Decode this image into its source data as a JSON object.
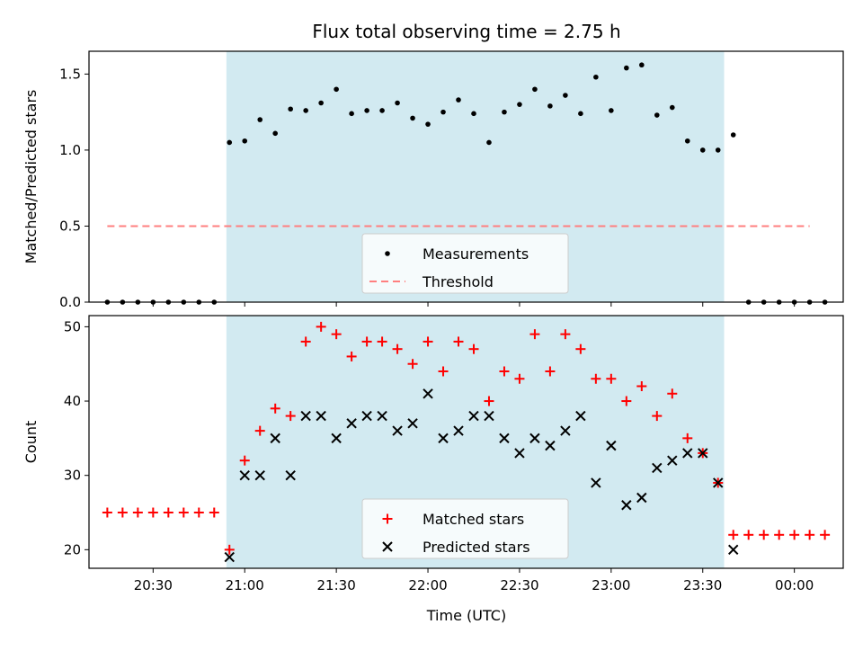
{
  "chart_data": {
    "title": "Flux total observing time = 2.75 h",
    "xlabel": "Time (UTC)",
    "x_ticks": [
      "20:30",
      "21:00",
      "21:30",
      "22:00",
      "22:30",
      "23:00",
      "23:30",
      "00:00"
    ],
    "x_tick_minutes": [
      1230,
      1260,
      1290,
      1320,
      1350,
      1380,
      1410,
      1440
    ],
    "xlim": [
      "20:09",
      "00:16"
    ],
    "highlight_span": [
      "20:54",
      "23:37"
    ],
    "colors": {
      "highlight": "#add8e6",
      "measurements": "#000000",
      "threshold": "#ff7f7f",
      "matched": "#ff0000",
      "predicted": "#000000"
    },
    "top": {
      "type": "scatter",
      "ylabel": "Matched/Predicted stars",
      "ylim": [
        0,
        1.65
      ],
      "y_ticks": [
        0.0,
        0.5,
        1.0,
        1.5
      ],
      "y_tick_labels": [
        "0.0",
        "0.5",
        "1.0",
        "1.5"
      ],
      "legend": [
        "Measurements",
        "Threshold"
      ],
      "legend_placement": "lower center",
      "threshold": {
        "y": 0.5,
        "x_range": [
          "20:15",
          "00:05"
        ]
      },
      "measurements": [
        [
          "20:15",
          0
        ],
        [
          "20:20",
          0
        ],
        [
          "20:25",
          0
        ],
        [
          "20:30",
          0
        ],
        [
          "20:35",
          0
        ],
        [
          "20:40",
          0
        ],
        [
          "20:45",
          0
        ],
        [
          "20:50",
          0
        ],
        [
          "20:55",
          1.05
        ],
        [
          "21:00",
          1.06
        ],
        [
          "21:05",
          1.2
        ],
        [
          "21:10",
          1.11
        ],
        [
          "21:15",
          1.27
        ],
        [
          "21:20",
          1.26
        ],
        [
          "21:25",
          1.31
        ],
        [
          "21:30",
          1.4
        ],
        [
          "21:35",
          1.24
        ],
        [
          "21:40",
          1.26
        ],
        [
          "21:45",
          1.26
        ],
        [
          "21:50",
          1.31
        ],
        [
          "21:55",
          1.21
        ],
        [
          "22:00",
          1.17
        ],
        [
          "22:05",
          1.25
        ],
        [
          "22:10",
          1.33
        ],
        [
          "22:15",
          1.24
        ],
        [
          "22:20",
          1.05
        ],
        [
          "22:25",
          1.25
        ],
        [
          "22:30",
          1.3
        ],
        [
          "22:35",
          1.4
        ],
        [
          "22:40",
          1.29
        ],
        [
          "22:45",
          1.36
        ],
        [
          "22:50",
          1.24
        ],
        [
          "22:55",
          1.48
        ],
        [
          "23:00",
          1.26
        ],
        [
          "23:05",
          1.54
        ],
        [
          "23:10",
          1.56
        ],
        [
          "23:15",
          1.23
        ],
        [
          "23:20",
          1.28
        ],
        [
          "23:25",
          1.06
        ],
        [
          "23:30",
          1.0
        ],
        [
          "23:35",
          1.0
        ],
        [
          "23:40",
          1.1
        ],
        [
          "23:45",
          0
        ],
        [
          "23:50",
          0
        ],
        [
          "23:55",
          0
        ],
        [
          "00:00",
          0
        ],
        [
          "00:05",
          0
        ],
        [
          "00:10",
          0
        ]
      ]
    },
    "bottom": {
      "type": "scatter",
      "ylabel": "Count",
      "ylim": [
        17.5,
        51.5
      ],
      "y_ticks": [
        20,
        30,
        40,
        50
      ],
      "y_tick_labels": [
        "20",
        "30",
        "40",
        "50"
      ],
      "legend": [
        "Matched stars",
        "Predicted stars"
      ],
      "legend_placement": "lower center",
      "matched_stars": [
        [
          "20:15",
          25
        ],
        [
          "20:20",
          25
        ],
        [
          "20:25",
          25
        ],
        [
          "20:30",
          25
        ],
        [
          "20:35",
          25
        ],
        [
          "20:40",
          25
        ],
        [
          "20:45",
          25
        ],
        [
          "20:50",
          25
        ],
        [
          "20:55",
          20
        ],
        [
          "21:00",
          32
        ],
        [
          "21:05",
          36
        ],
        [
          "21:10",
          39
        ],
        [
          "21:15",
          38
        ],
        [
          "21:20",
          48
        ],
        [
          "21:25",
          50
        ],
        [
          "21:30",
          49
        ],
        [
          "21:35",
          46
        ],
        [
          "21:40",
          48
        ],
        [
          "21:45",
          48
        ],
        [
          "21:50",
          47
        ],
        [
          "21:55",
          45
        ],
        [
          "22:00",
          48
        ],
        [
          "22:05",
          44
        ],
        [
          "22:10",
          48
        ],
        [
          "22:15",
          47
        ],
        [
          "22:20",
          40
        ],
        [
          "22:25",
          44
        ],
        [
          "22:30",
          43
        ],
        [
          "22:35",
          49
        ],
        [
          "22:40",
          44
        ],
        [
          "22:45",
          49
        ],
        [
          "22:50",
          47
        ],
        [
          "22:55",
          43
        ],
        [
          "23:00",
          43
        ],
        [
          "23:05",
          40
        ],
        [
          "23:10",
          42
        ],
        [
          "23:15",
          38
        ],
        [
          "23:20",
          41
        ],
        [
          "23:25",
          35
        ],
        [
          "23:30",
          33
        ],
        [
          "23:35",
          29
        ],
        [
          "23:40",
          22
        ],
        [
          "23:45",
          22
        ],
        [
          "23:50",
          22
        ],
        [
          "23:55",
          22
        ],
        [
          "00:00",
          22
        ],
        [
          "00:05",
          22
        ],
        [
          "00:10",
          22
        ]
      ],
      "predicted_stars": [
        [
          "20:55",
          19
        ],
        [
          "21:00",
          30
        ],
        [
          "21:05",
          30
        ],
        [
          "21:10",
          35
        ],
        [
          "21:15",
          30
        ],
        [
          "21:20",
          38
        ],
        [
          "21:25",
          38
        ],
        [
          "21:30",
          35
        ],
        [
          "21:35",
          37
        ],
        [
          "21:40",
          38
        ],
        [
          "21:45",
          38
        ],
        [
          "21:50",
          36
        ],
        [
          "21:55",
          37
        ],
        [
          "22:00",
          41
        ],
        [
          "22:05",
          35
        ],
        [
          "22:10",
          36
        ],
        [
          "22:15",
          38
        ],
        [
          "22:20",
          38
        ],
        [
          "22:25",
          35
        ],
        [
          "22:30",
          33
        ],
        [
          "22:35",
          35
        ],
        [
          "22:40",
          34
        ],
        [
          "22:45",
          36
        ],
        [
          "22:50",
          38
        ],
        [
          "22:55",
          29
        ],
        [
          "23:00",
          34
        ],
        [
          "23:05",
          26
        ],
        [
          "23:10",
          27
        ],
        [
          "23:15",
          31
        ],
        [
          "23:20",
          32
        ],
        [
          "23:25",
          33
        ],
        [
          "23:30",
          33
        ],
        [
          "23:35",
          29
        ],
        [
          "23:40",
          20
        ]
      ]
    }
  }
}
